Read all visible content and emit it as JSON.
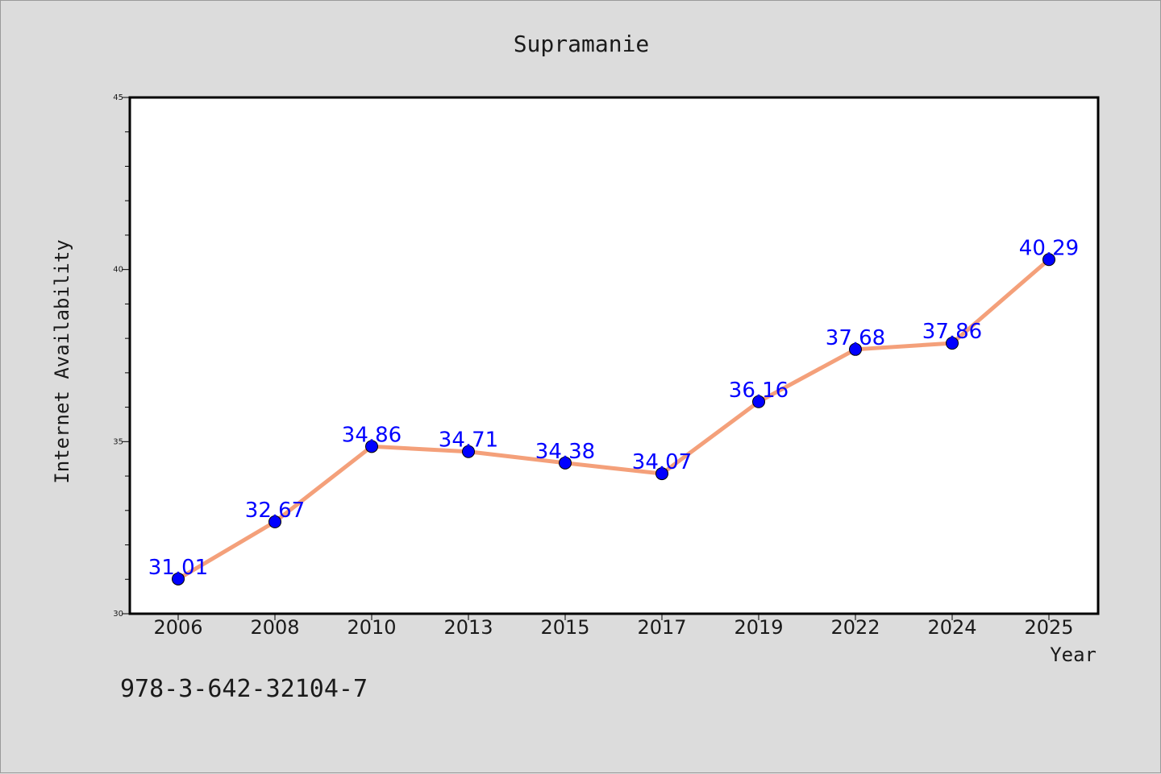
{
  "chart_data": {
    "type": "line",
    "title": "Supramanie",
    "xlabel": "Year",
    "ylabel": "Internet Availability",
    "categories": [
      "2006",
      "2008",
      "2010",
      "2013",
      "2015",
      "2017",
      "2019",
      "2022",
      "2024",
      "2025"
    ],
    "series": [
      {
        "values": [
          31.01,
          32.67,
          34.86,
          34.71,
          34.38,
          34.07,
          36.16,
          37.68,
          37.86,
          40.29
        ],
        "line_color": "#f4a07a",
        "marker_color": "#0000ff",
        "label_color": "#0000ff"
      }
    ],
    "data_labels": [
      "31.01",
      "32.67",
      "34.86",
      "34.71",
      "34.38",
      "34.07",
      "36.16",
      "37.68",
      "37.86",
      "40.29"
    ],
    "ylim": [
      30,
      45
    ],
    "yticks": [
      "30",
      "35",
      "40",
      "45"
    ],
    "grid": false,
    "legend": "none"
  },
  "footer_note": "978-3-642-32104-7"
}
